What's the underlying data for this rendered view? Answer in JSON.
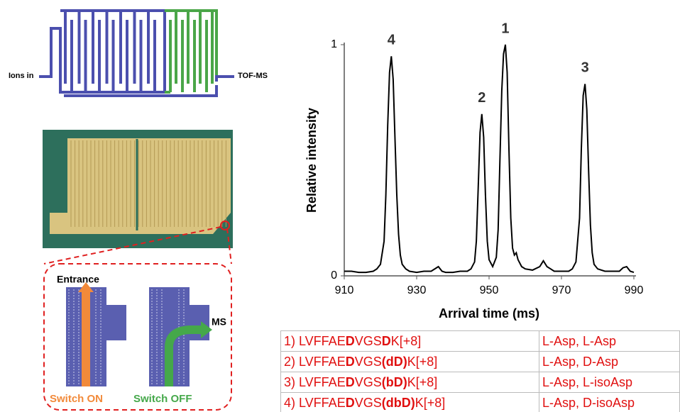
{
  "chart_data": {
    "type": "line",
    "xlabel": "Arrival time (ms)",
    "ylabel": "Relative intensity",
    "x": [
      910,
      912,
      914,
      916,
      918,
      919,
      920,
      921,
      921.5,
      922,
      922.5,
      923,
      923.5,
      924,
      924.5,
      925,
      925.5,
      926,
      927,
      928,
      930,
      932,
      934,
      936,
      937,
      938,
      940,
      942,
      944,
      945,
      946,
      946.5,
      947,
      947.5,
      948,
      948.5,
      949,
      949.5,
      950,
      951,
      952,
      952.5,
      953,
      953.5,
      954,
      954.5,
      955,
      955.5,
      956,
      956.5,
      957,
      957.5,
      958,
      959,
      960,
      962,
      964,
      965,
      966,
      967,
      968,
      970,
      972,
      973,
      974,
      975,
      975.5,
      976,
      976.5,
      977,
      977.5,
      978,
      978.5,
      979,
      980,
      982,
      984,
      986,
      987,
      988,
      989,
      990
    ],
    "values": [
      0.02,
      0.02,
      0.015,
      0.015,
      0.02,
      0.03,
      0.05,
      0.15,
      0.35,
      0.65,
      0.88,
      0.95,
      0.85,
      0.6,
      0.35,
      0.18,
      0.09,
      0.05,
      0.03,
      0.02,
      0.015,
      0.02,
      0.02,
      0.04,
      0.02,
      0.015,
      0.015,
      0.02,
      0.02,
      0.03,
      0.06,
      0.15,
      0.38,
      0.62,
      0.7,
      0.6,
      0.35,
      0.15,
      0.07,
      0.04,
      0.08,
      0.2,
      0.5,
      0.8,
      0.96,
      1.0,
      0.88,
      0.55,
      0.25,
      0.12,
      0.09,
      0.1,
      0.07,
      0.04,
      0.03,
      0.025,
      0.04,
      0.065,
      0.04,
      0.03,
      0.02,
      0.02,
      0.02,
      0.03,
      0.06,
      0.25,
      0.55,
      0.78,
      0.83,
      0.72,
      0.45,
      0.22,
      0.1,
      0.05,
      0.03,
      0.02,
      0.02,
      0.02,
      0.035,
      0.04,
      0.02,
      0.015
    ],
    "color": "#000000",
    "xlim": [
      910,
      990
    ],
    "xticks": [
      910,
      930,
      950,
      970,
      990
    ],
    "ylim": [
      0,
      1
    ],
    "yticks": [
      0,
      1
    ],
    "annotations": [
      {
        "text": "4",
        "x": 923,
        "y": 0.95
      },
      {
        "text": "2",
        "x": 948,
        "y": 0.7
      },
      {
        "text": "1",
        "x": 954.5,
        "y": 1.0
      },
      {
        "text": "3",
        "x": 976.5,
        "y": 0.83
      }
    ]
  },
  "diagram": {
    "ions_in": "Ions in",
    "tof_ms": "TOF-MS"
  },
  "zoom": {
    "entrance": "Entrance",
    "ms": "MS",
    "switch_on": "Switch ON",
    "switch_off": "Switch OFF"
  },
  "table": {
    "rows": [
      [
        {
          "parts": [
            "1) LVFFAE",
            "D",
            "VGS",
            "D",
            "K[+8]"
          ],
          "bold": [
            false,
            true,
            false,
            true,
            false
          ]
        },
        "L-Asp, L-Asp"
      ],
      [
        {
          "parts": [
            "2) LVFFAE",
            "D",
            "VGS",
            "(dD)",
            "K[+8]"
          ],
          "bold": [
            false,
            true,
            false,
            true,
            false
          ]
        },
        "L-Asp, D-Asp"
      ],
      [
        {
          "parts": [
            "3) LVFFAE",
            "D",
            "VGS",
            "(bD)",
            "K[+8]"
          ],
          "bold": [
            false,
            true,
            false,
            true,
            false
          ]
        },
        "L-Asp, L-isoAsp"
      ],
      [
        {
          "parts": [
            "4) LVFFAE",
            "D",
            "VGS",
            "(dbD)",
            "K[+8]"
          ],
          "bold": [
            false,
            true,
            false,
            true,
            false
          ]
        },
        "L-Asp, D-isoAsp"
      ]
    ]
  }
}
